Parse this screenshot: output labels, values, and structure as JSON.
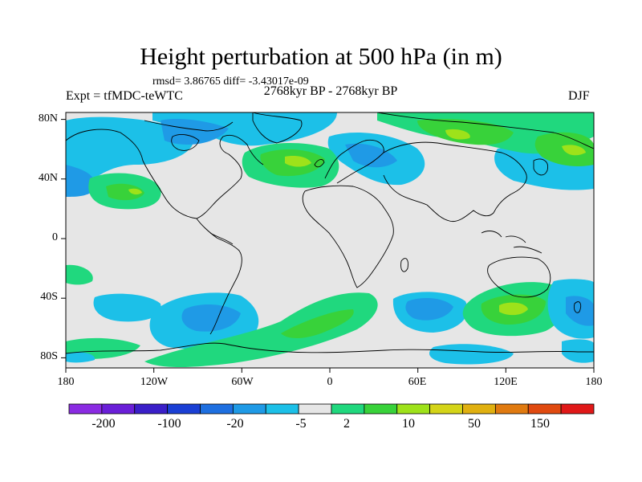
{
  "title": "Height perturbation at 500 hPa (in m)",
  "stats": "rmsd= 3.86765 diff= -3.43017e-09",
  "left_label": "Expt = tfMDC-teWTC",
  "center_label": "2768kyr BP - 2768kyr BP",
  "right_label": "DJF",
  "x_ticks": [
    "180",
    "120W",
    "60W",
    "0",
    "60E",
    "120E",
    "180"
  ],
  "y_ticks": [
    "80N",
    "40N",
    "0",
    "40S",
    "80S"
  ],
  "colorbar": {
    "colors": [
      "#8a2be2",
      "#6a1fd8",
      "#3a1fc8",
      "#1a3fd4",
      "#1e6fe0",
      "#1f9ae6",
      "#1cc0e8",
      "#e6e6e6",
      "#20d87e",
      "#38d23a",
      "#9ee21a",
      "#d4d418",
      "#e0b010",
      "#e07a10",
      "#e04a10",
      "#e01818"
    ],
    "labels": [
      "-200",
      "-100",
      "-20",
      "-5",
      "2",
      "10",
      "50",
      "150"
    ]
  },
  "map_colors": {
    "background": "#e6e6e6",
    "coast": "#000000"
  }
}
